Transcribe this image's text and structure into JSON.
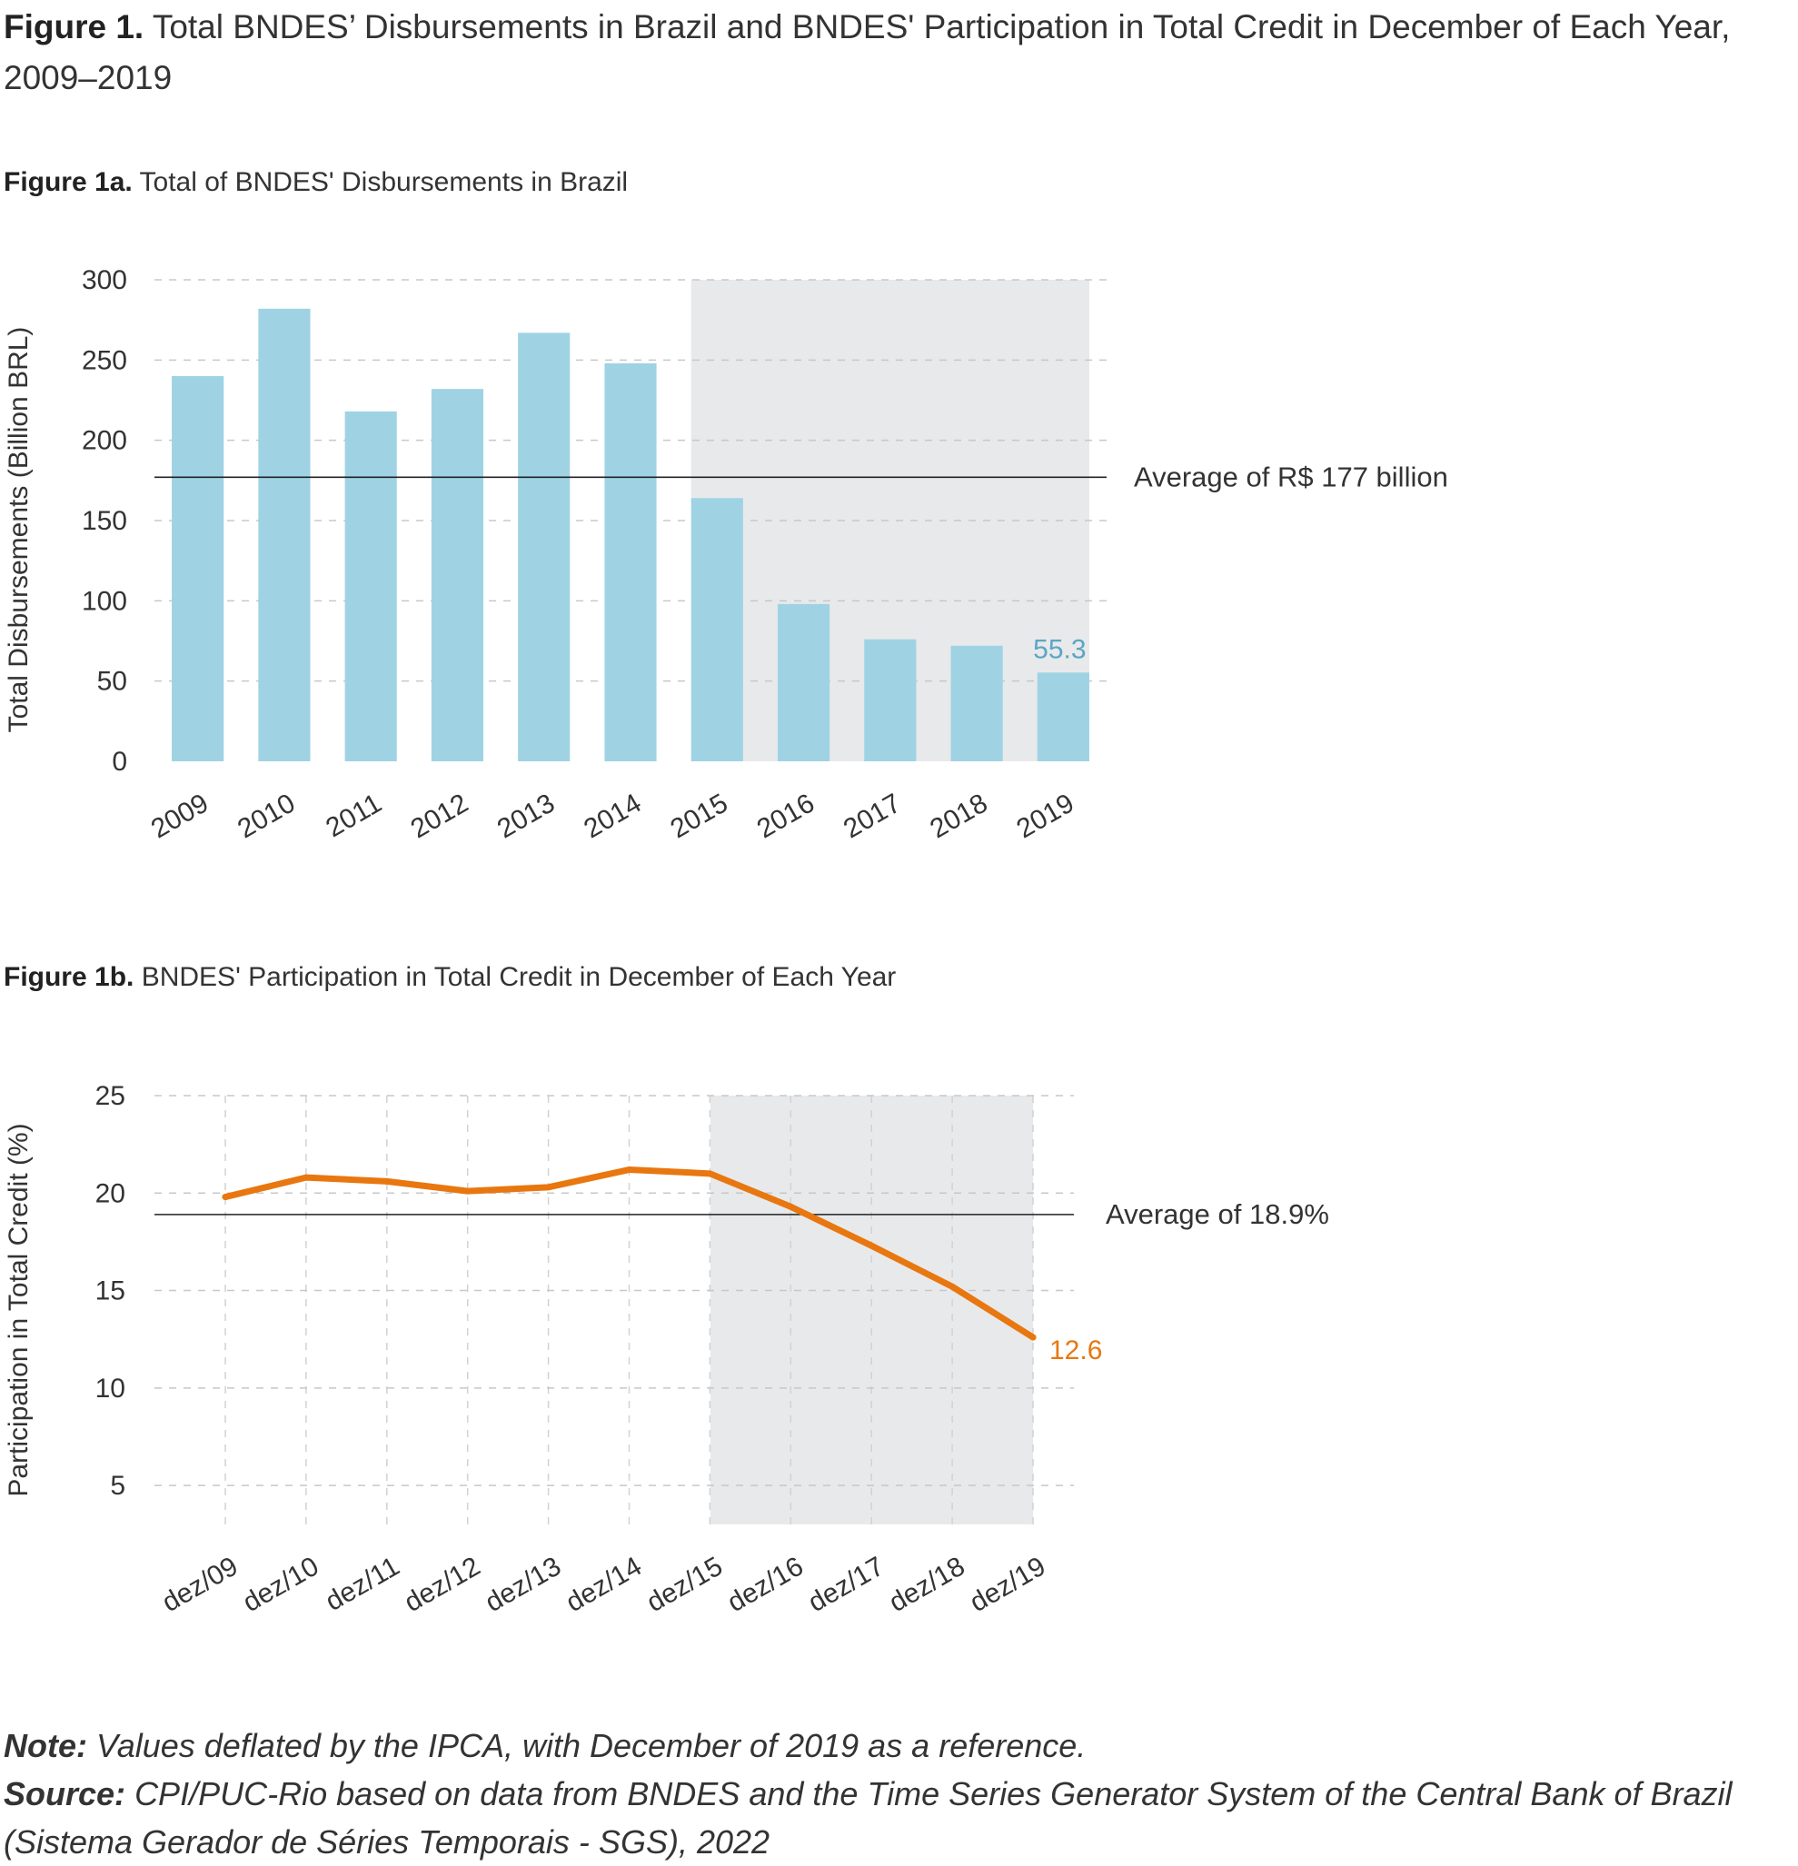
{
  "figure": {
    "label": "Figure 1.",
    "title": "Total BNDES’ Disbursements in Brazil and BNDES' Participation in Total Credit in December of Each Year, 2009–2019"
  },
  "chart_a_heading": {
    "label": "Figure 1a.",
    "text": "Total of BNDES' Disbursements in Brazil"
  },
  "chart_b_heading": {
    "label": "Figure 1b.",
    "text": "BNDES' Participation in Total Credit in December of Each Year"
  },
  "chart_data": [
    {
      "type": "bar",
      "categories": [
        "2009",
        "2010",
        "2011",
        "2012",
        "2013",
        "2014",
        "2015",
        "2016",
        "2017",
        "2018",
        "2019"
      ],
      "values": [
        240,
        282,
        218,
        232,
        267,
        248,
        164,
        98,
        76,
        72,
        55.3
      ],
      "ylabel": "Total Disbursements (Billion BRL)",
      "ylim": [
        0,
        300
      ],
      "yticks": [
        0,
        50,
        100,
        150,
        200,
        250,
        300
      ],
      "grid": true,
      "shaded_range": [
        "2015",
        "2019"
      ],
      "reference_line": {
        "value": 177,
        "label": "Average of R$ 177 billion"
      },
      "data_labels": [
        {
          "category": "2019",
          "text": "55.3"
        }
      ],
      "colors": {
        "bar": "#9fd3e4",
        "shade": "#e8e9eb",
        "data_label": "#5aa6c4"
      }
    },
    {
      "type": "line",
      "categories": [
        "dez/09",
        "dez/10",
        "dez/11",
        "dez/12",
        "dez/13",
        "dez/14",
        "dez/15",
        "dez/16",
        "dez/17",
        "dez/18",
        "dez/19"
      ],
      "values": [
        19.8,
        20.8,
        20.6,
        20.1,
        20.3,
        21.2,
        21.0,
        19.3,
        17.3,
        15.2,
        12.6
      ],
      "ylabel": "Participation in Total Credit (%)",
      "ylim": [
        3,
        25
      ],
      "yticks": [
        5,
        10,
        15,
        20,
        25
      ],
      "grid": true,
      "shaded_range": [
        "dez/15",
        "dez/19"
      ],
      "reference_line": {
        "value": 18.9,
        "label": "Average of 18.9%"
      },
      "data_labels": [
        {
          "category": "dez/19",
          "text": "12.6"
        }
      ],
      "colors": {
        "line": "#e8770f",
        "shade": "#e8e9eb",
        "data_label": "#e8770f"
      }
    }
  ],
  "footer": {
    "note_label": "Note:",
    "note_text": "Values deflated by the IPCA, with December of 2019 as a reference.",
    "source_label": "Source:",
    "source_text": "CPI/PUC-Rio based on data from BNDES and the Time Series Generator System of the Central Bank of Brazil (Sistema Gerador de Séries Temporais - SGS), 2022"
  }
}
